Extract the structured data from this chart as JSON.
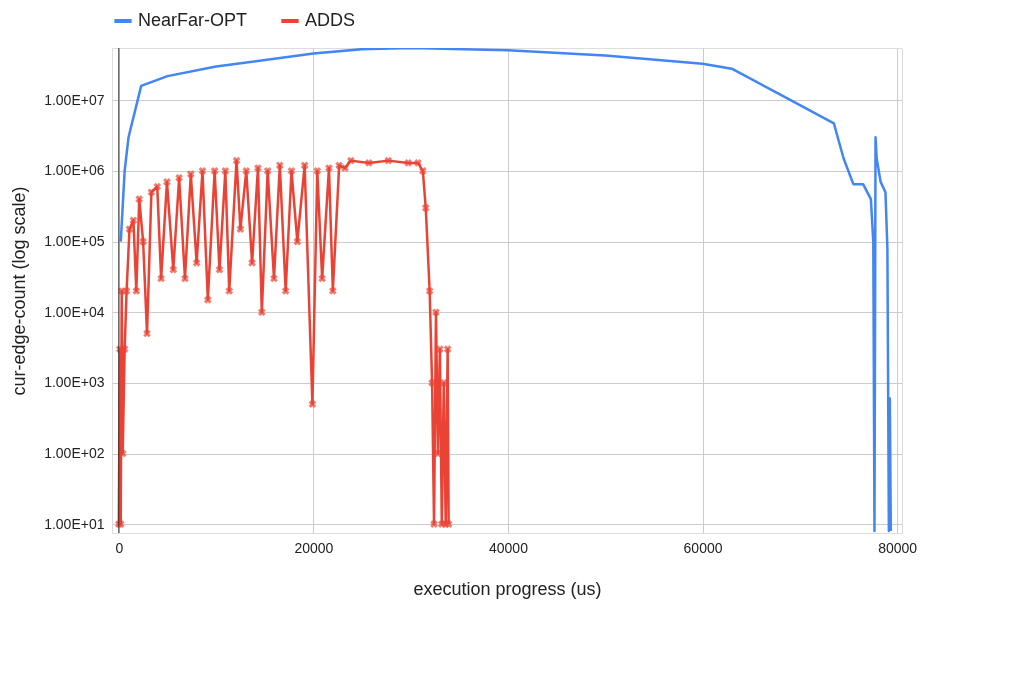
{
  "chart_data": {
    "type": "line",
    "xlabel": "execution progress (us)",
    "ylabel": "cur-edge-count (log scale)",
    "xlim": [
      -700,
      80500
    ],
    "xticks": [
      0,
      20000,
      40000,
      60000,
      80000
    ],
    "ylim": [
      7.5,
      55000000
    ],
    "log": "y",
    "yticks": [
      {
        "value": 10,
        "label": "1.00E+01"
      },
      {
        "value": 100,
        "label": "1.00E+02"
      },
      {
        "value": 1000,
        "label": "1.00E+03"
      },
      {
        "value": 10000,
        "label": "1.00E+04"
      },
      {
        "value": 100000,
        "label": "1.00E+05"
      },
      {
        "value": 1000000,
        "label": "1.00E+06"
      },
      {
        "value": 10000000,
        "label": "1.00E+07"
      }
    ],
    "grid": true,
    "legend": "top",
    "line_style": "solid",
    "series": [
      {
        "name": "NearFar-OPT",
        "color": "#4285f4",
        "marker": "none",
        "x": [
          200,
          600,
          1000,
          2300,
          5000,
          10000,
          20000,
          25000,
          30000,
          40000,
          50000,
          60000,
          63000,
          68000,
          73500,
          74500,
          75500,
          76500,
          77300,
          77550,
          77670,
          77780,
          77900,
          78300,
          78800,
          79000,
          79150,
          79250,
          79350
        ],
        "values": [
          100000,
          1000000,
          3000000,
          16000000,
          22000000,
          30000000,
          46000000,
          53000000,
          55000000,
          51000000,
          43000000,
          33000000,
          28000000,
          12000000,
          4700000,
          1500000,
          650000,
          650000,
          400000,
          100000,
          8,
          3000000,
          1500000,
          700000,
          500000,
          80000,
          8,
          600,
          8
        ]
      },
      {
        "name": "ADDS",
        "color": "#ea4335",
        "marker": "cross",
        "x": [
          0,
          100,
          200,
          300,
          400,
          600,
          800,
          1100,
          1500,
          1800,
          2100,
          2500,
          2900,
          3350,
          3950,
          4350,
          4950,
          5600,
          6200,
          6800,
          7400,
          8000,
          8600,
          9150,
          9850,
          10350,
          10950,
          11350,
          12100,
          12500,
          13100,
          13700,
          14300,
          14700,
          15300,
          15950,
          16550,
          17150,
          17750,
          18350,
          19100,
          19900,
          20400,
          20900,
          21600,
          22000,
          22650,
          23250,
          23850,
          25700,
          27700,
          29750,
          30750,
          31250,
          31550,
          31950,
          32200,
          32400,
          32600,
          32800,
          33000,
          33200,
          33400,
          33600,
          33800,
          33900
        ],
        "values": [
          10,
          3000,
          10,
          20000,
          100,
          3000,
          20000,
          150000,
          200000,
          20000,
          400000,
          100000,
          5000,
          500000,
          600000,
          30000,
          700000,
          40000,
          800000,
          30000,
          900000,
          50000,
          1000000,
          15000,
          1000000,
          40000,
          1000000,
          20000,
          1400000,
          150000,
          1000000,
          50000,
          1100000,
          10000,
          1000000,
          30000,
          1200000,
          20000,
          1000000,
          100000,
          1200000,
          500,
          1000000,
          30000,
          1100000,
          20000,
          1200000,
          1100000,
          1400000,
          1300000,
          1400000,
          1300000,
          1300000,
          1000000,
          300000,
          20000,
          1000,
          10,
          10000,
          100,
          3000,
          10,
          1000,
          10,
          3000,
          10
        ]
      }
    ]
  }
}
